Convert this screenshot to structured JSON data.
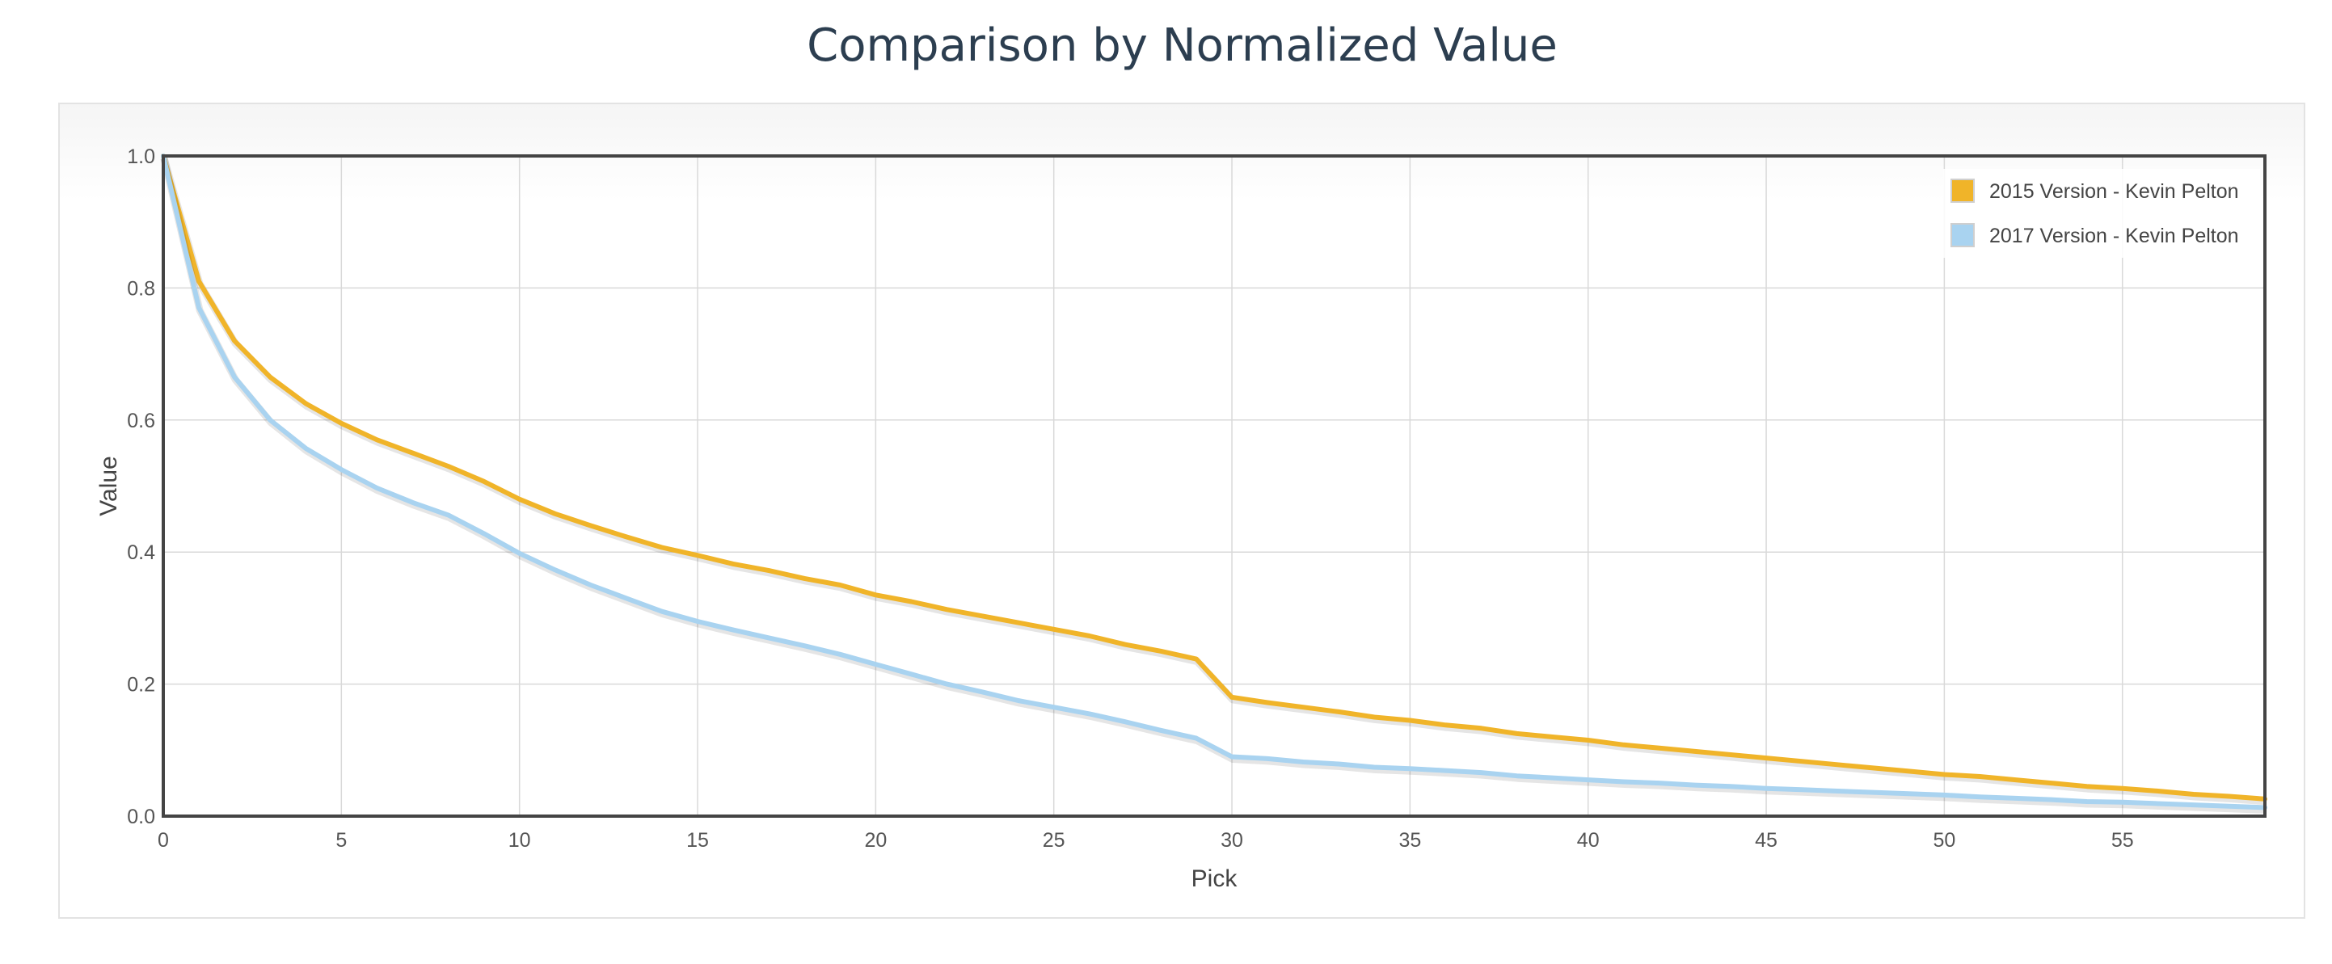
{
  "title": "Comparison by Normalized Value",
  "colors": {
    "series_2015": "#f0b429",
    "series_2017": "#a9d3f0",
    "axis": "#444444",
    "grid": "#d9d9d9"
  },
  "chart_data": {
    "type": "line",
    "title": "Comparison by Normalized Value",
    "xlabel": "Pick",
    "ylabel": "Value",
    "xlim": [
      0,
      59
    ],
    "ylim": [
      0,
      1.0
    ],
    "x_ticks": [
      0,
      5,
      10,
      15,
      20,
      25,
      30,
      35,
      40,
      45,
      50,
      55
    ],
    "y_ticks": [
      "0.0",
      "0.2",
      "0.4",
      "0.6",
      "0.8",
      "1.0"
    ],
    "y_tick_values": [
      0,
      0.2,
      0.4,
      0.6,
      0.8,
      1.0
    ],
    "grid": true,
    "legend_position": "top-right",
    "x": [
      0,
      1,
      2,
      3,
      4,
      5,
      6,
      7,
      8,
      9,
      10,
      11,
      12,
      13,
      14,
      15,
      16,
      17,
      18,
      19,
      20,
      21,
      22,
      23,
      24,
      25,
      26,
      27,
      28,
      29,
      30,
      31,
      32,
      33,
      34,
      35,
      36,
      37,
      38,
      39,
      40,
      41,
      42,
      43,
      44,
      45,
      46,
      47,
      48,
      49,
      50,
      51,
      52,
      53,
      54,
      55,
      56,
      57,
      58,
      59
    ],
    "series": [
      {
        "name": "2015 Version - Kevin Pelton",
        "color": "#f0b429",
        "values": [
          1.0,
          0.81,
          0.72,
          0.665,
          0.625,
          0.595,
          0.57,
          0.55,
          0.53,
          0.507,
          0.48,
          0.458,
          0.44,
          0.423,
          0.407,
          0.395,
          0.382,
          0.372,
          0.36,
          0.35,
          0.335,
          0.325,
          0.313,
          0.303,
          0.293,
          0.283,
          0.273,
          0.26,
          0.25,
          0.238,
          0.18,
          0.172,
          0.165,
          0.158,
          0.15,
          0.145,
          0.138,
          0.133,
          0.125,
          0.12,
          0.115,
          0.108,
          0.103,
          0.098,
          0.093,
          0.088,
          0.083,
          0.078,
          0.073,
          0.068,
          0.063,
          0.06,
          0.055,
          0.05,
          0.045,
          0.042,
          0.038,
          0.033,
          0.03,
          0.026
        ]
      },
      {
        "name": "2017 Version - Kevin Pelton",
        "color": "#a9d3f0",
        "values": [
          1.0,
          0.77,
          0.665,
          0.6,
          0.557,
          0.525,
          0.497,
          0.475,
          0.456,
          0.428,
          0.398,
          0.373,
          0.35,
          0.33,
          0.31,
          0.295,
          0.282,
          0.27,
          0.258,
          0.245,
          0.23,
          0.215,
          0.2,
          0.188,
          0.175,
          0.165,
          0.155,
          0.143,
          0.13,
          0.118,
          0.09,
          0.087,
          0.082,
          0.079,
          0.074,
          0.072,
          0.069,
          0.066,
          0.061,
          0.058,
          0.055,
          0.052,
          0.05,
          0.047,
          0.045,
          0.042,
          0.04,
          0.038,
          0.036,
          0.034,
          0.032,
          0.029,
          0.027,
          0.025,
          0.022,
          0.021,
          0.019,
          0.017,
          0.015,
          0.013
        ]
      }
    ]
  }
}
